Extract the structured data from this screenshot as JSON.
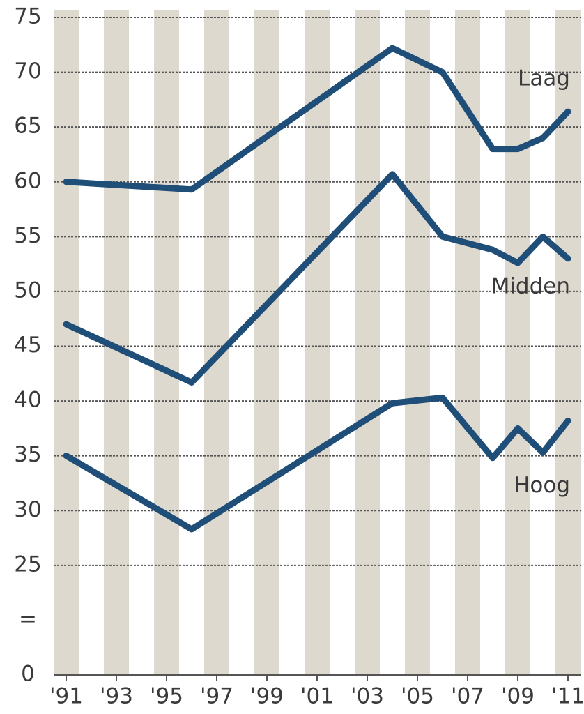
{
  "chart_data": {
    "type": "line",
    "x": [
      1991,
      1996,
      2004,
      2006,
      2008,
      2009,
      2010,
      2011
    ],
    "series": [
      {
        "name": "Laag",
        "color": "#1f4e79",
        "values": [
          60,
          59.3,
          72.2,
          70,
          63,
          63,
          64,
          66.4
        ]
      },
      {
        "name": "Midden",
        "color": "#1f4e79",
        "values": [
          47,
          41.7,
          60.7,
          55,
          53.8,
          52.6,
          55,
          53
        ]
      },
      {
        "name": "Hoog",
        "color": "#1f4e79",
        "values": [
          35,
          28.3,
          39.8,
          40.3,
          34.8,
          37.5,
          35.3,
          38.2
        ]
      }
    ],
    "xlim": [
      1990.5,
      2011.5
    ],
    "xticks": [
      {
        "value": 1991,
        "label": "'91"
      },
      {
        "value": 1993,
        "label": "'93"
      },
      {
        "value": 1995,
        "label": "'95"
      },
      {
        "value": 1997,
        "label": "'97"
      },
      {
        "value": 1999,
        "label": "'99"
      },
      {
        "value": 2001,
        "label": "'01"
      },
      {
        "value": 2003,
        "label": "'03"
      },
      {
        "value": 2005,
        "label": "'05"
      },
      {
        "value": 2007,
        "label": "'07"
      },
      {
        "value": 2009,
        "label": "'09"
      },
      {
        "value": 2011,
        "label": "'11"
      }
    ],
    "ylim": [
      0,
      75
    ],
    "y_break": [
      0,
      20
    ],
    "break_symbol": "=",
    "yticks": [
      0,
      25,
      30,
      35,
      40,
      45,
      50,
      55,
      60,
      65,
      70,
      75
    ],
    "grid": true,
    "year_stripes": true
  }
}
